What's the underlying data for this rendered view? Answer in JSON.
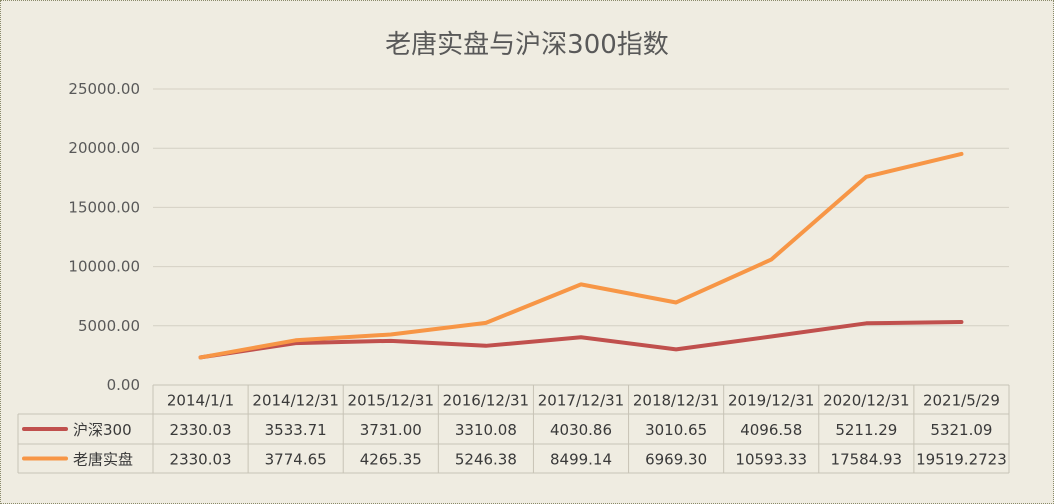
{
  "chart_data": {
    "type": "line",
    "title": "老唐实盘与沪深300指数",
    "categories": [
      "2014/1/1",
      "2014/12/31",
      "2015/12/31",
      "2016/12/31",
      "2017/12/31",
      "2018/12/31",
      "2019/12/31",
      "2020/12/31",
      "2021/5/29"
    ],
    "series": [
      {
        "name": "沪深300",
        "color": "#c0504d",
        "values": [
          2330.03,
          3533.71,
          3731.0,
          3310.08,
          4030.86,
          3010.65,
          4096.58,
          5211.29,
          5321.09
        ],
        "labels": [
          "2330.03",
          "3533.71",
          "3731.00",
          "3310.08",
          "4030.86",
          "3010.65",
          "4096.58",
          "5211.29",
          "5321.09"
        ]
      },
      {
        "name": "老唐实盘",
        "color": "#f79646",
        "values": [
          2330.03,
          3774.65,
          4265.35,
          5246.38,
          8499.14,
          6969.3,
          10593.33,
          17584.93,
          19519.2723
        ],
        "labels": [
          "2330.03",
          "3774.65",
          "4265.35",
          "5246.38",
          "8499.14",
          "6969.30",
          "10593.33",
          "17584.93",
          "19519.2723"
        ]
      }
    ],
    "ylim": [
      0,
      25000
    ],
    "yticks": [
      "0.00",
      "5000.00",
      "10000.00",
      "15000.00",
      "20000.00",
      "25000.00"
    ],
    "yticks_values": [
      0,
      5000,
      10000,
      15000,
      20000,
      25000
    ],
    "grid": true,
    "legend": "data-table-left"
  }
}
